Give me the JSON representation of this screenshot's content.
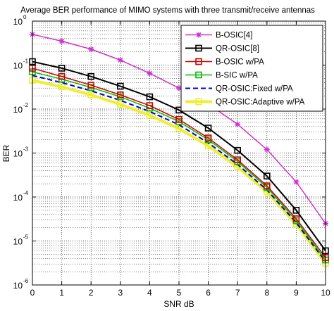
{
  "chart_data": {
    "type": "line",
    "title": "Average BER performance of MIMO systems with three transmit/receive antennas",
    "xlabel": "SNR dB",
    "ylabel": "BER",
    "xlim": [
      0,
      10
    ],
    "ylim": [
      1e-06,
      1
    ],
    "yscale": "log",
    "grid": true,
    "x_ticks": [
      "0",
      "1",
      "2",
      "3",
      "4",
      "5",
      "6",
      "7",
      "8",
      "9",
      "10"
    ],
    "y_ticks": [
      {
        "base": "10",
        "exp": "0",
        "value": 1
      },
      {
        "base": "10",
        "exp": "-1",
        "value": 0.1
      },
      {
        "base": "10",
        "exp": "-2",
        "value": 0.01
      },
      {
        "base": "10",
        "exp": "-3",
        "value": 0.001
      },
      {
        "base": "10",
        "exp": "-4",
        "value": 0.0001
      },
      {
        "base": "10",
        "exp": "-5",
        "value": 1e-05
      },
      {
        "base": "10",
        "exp": "-6",
        "value": 1e-06
      }
    ],
    "legend_position": "top-right",
    "x": [
      0,
      1,
      2,
      3,
      4,
      5,
      6,
      7,
      8,
      9,
      10
    ],
    "series": [
      {
        "name": "B-OSIC[4]",
        "color": "#cc33cc",
        "marker": "star",
        "dash": "solid",
        "width": 1.5,
        "values": [
          0.5,
          0.35,
          0.23,
          0.13,
          0.065,
          0.03,
          0.013,
          0.0045,
          0.0012,
          0.00022,
          2.5e-05
        ]
      },
      {
        "name": "QR-OSIC[8]",
        "color": "#000000",
        "marker": "square",
        "dash": "solid",
        "width": 2,
        "values": [
          0.12,
          0.085,
          0.055,
          0.033,
          0.019,
          0.0095,
          0.0037,
          0.00115,
          0.0003,
          5e-05,
          6e-06
        ]
      },
      {
        "name": "B-OSIC w/PA",
        "color": "#cc0000",
        "marker": "square",
        "dash": "solid",
        "width": 1.5,
        "values": [
          0.085,
          0.055,
          0.035,
          0.021,
          0.012,
          0.0058,
          0.0022,
          0.0007,
          0.00018,
          3.2e-05,
          4.2e-06
        ]
      },
      {
        "name": "B-SIC w/PA",
        "color": "#00bb00",
        "marker": "square",
        "dash": "solid",
        "width": 1.5,
        "values": [
          0.07,
          0.048,
          0.031,
          0.019,
          0.0105,
          0.0052,
          0.002,
          0.00064,
          0.000165,
          2.9e-05,
          3.7e-06
        ]
      },
      {
        "name": "QR-OSIC:Fixed w/PA",
        "color": "#0000cc",
        "marker": "none",
        "dash": "dashed",
        "width": 2,
        "values": [
          0.058,
          0.04,
          0.026,
          0.0158,
          0.0088,
          0.0044,
          0.0017,
          0.00055,
          0.000145,
          2.6e-05,
          3.4e-06
        ]
      },
      {
        "name": "QR-OSIC:Adaptive w/PA",
        "color": "#eeee33",
        "marker": "square",
        "dash": "solid",
        "width": 4,
        "values": [
          0.045,
          0.032,
          0.021,
          0.0128,
          0.0072,
          0.0036,
          0.00145,
          0.00048,
          0.00013,
          2.4e-05,
          3.1e-06
        ]
      }
    ]
  }
}
